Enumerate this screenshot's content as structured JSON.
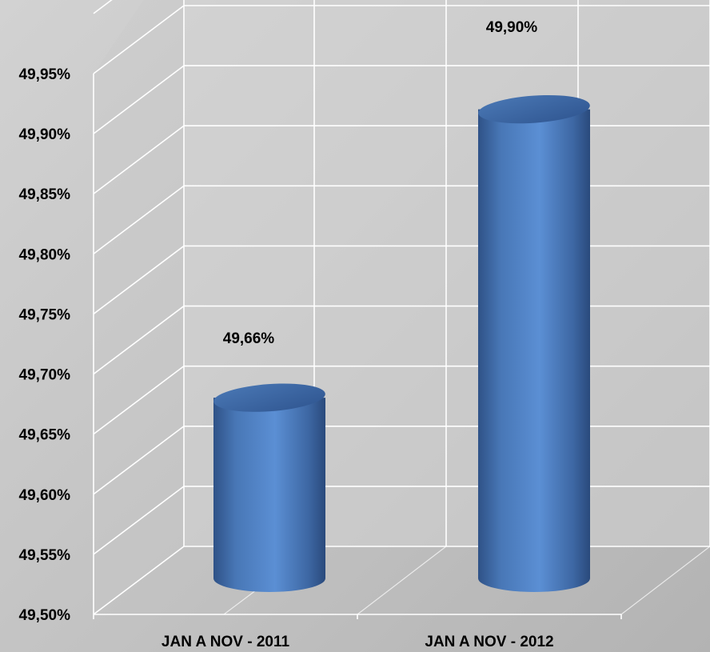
{
  "chart_data": {
    "type": "bar",
    "style": "3d-cylinder",
    "categories": [
      "JAN A NOV - 2011",
      "JAN A NOV - 2012"
    ],
    "values": [
      49.66,
      49.9
    ],
    "data_labels": [
      "49,66%",
      "49,90%"
    ],
    "y_ticks": [
      "49,50%",
      "49,55%",
      "49,60%",
      "49,65%",
      "49,70%",
      "49,75%",
      "49,80%",
      "49,85%",
      "49,90%",
      "49,95%"
    ],
    "ylim": [
      49.5,
      49.95
    ],
    "grid": true,
    "legend": "none",
    "colors": {
      "bar_front": "#4f81bd",
      "bar_light": "#6f9fdc",
      "bar_dark": "#2e4f80",
      "bar_top": "#3b68a8",
      "grid": "#ffffff",
      "wall": "#d6d6d6"
    }
  }
}
